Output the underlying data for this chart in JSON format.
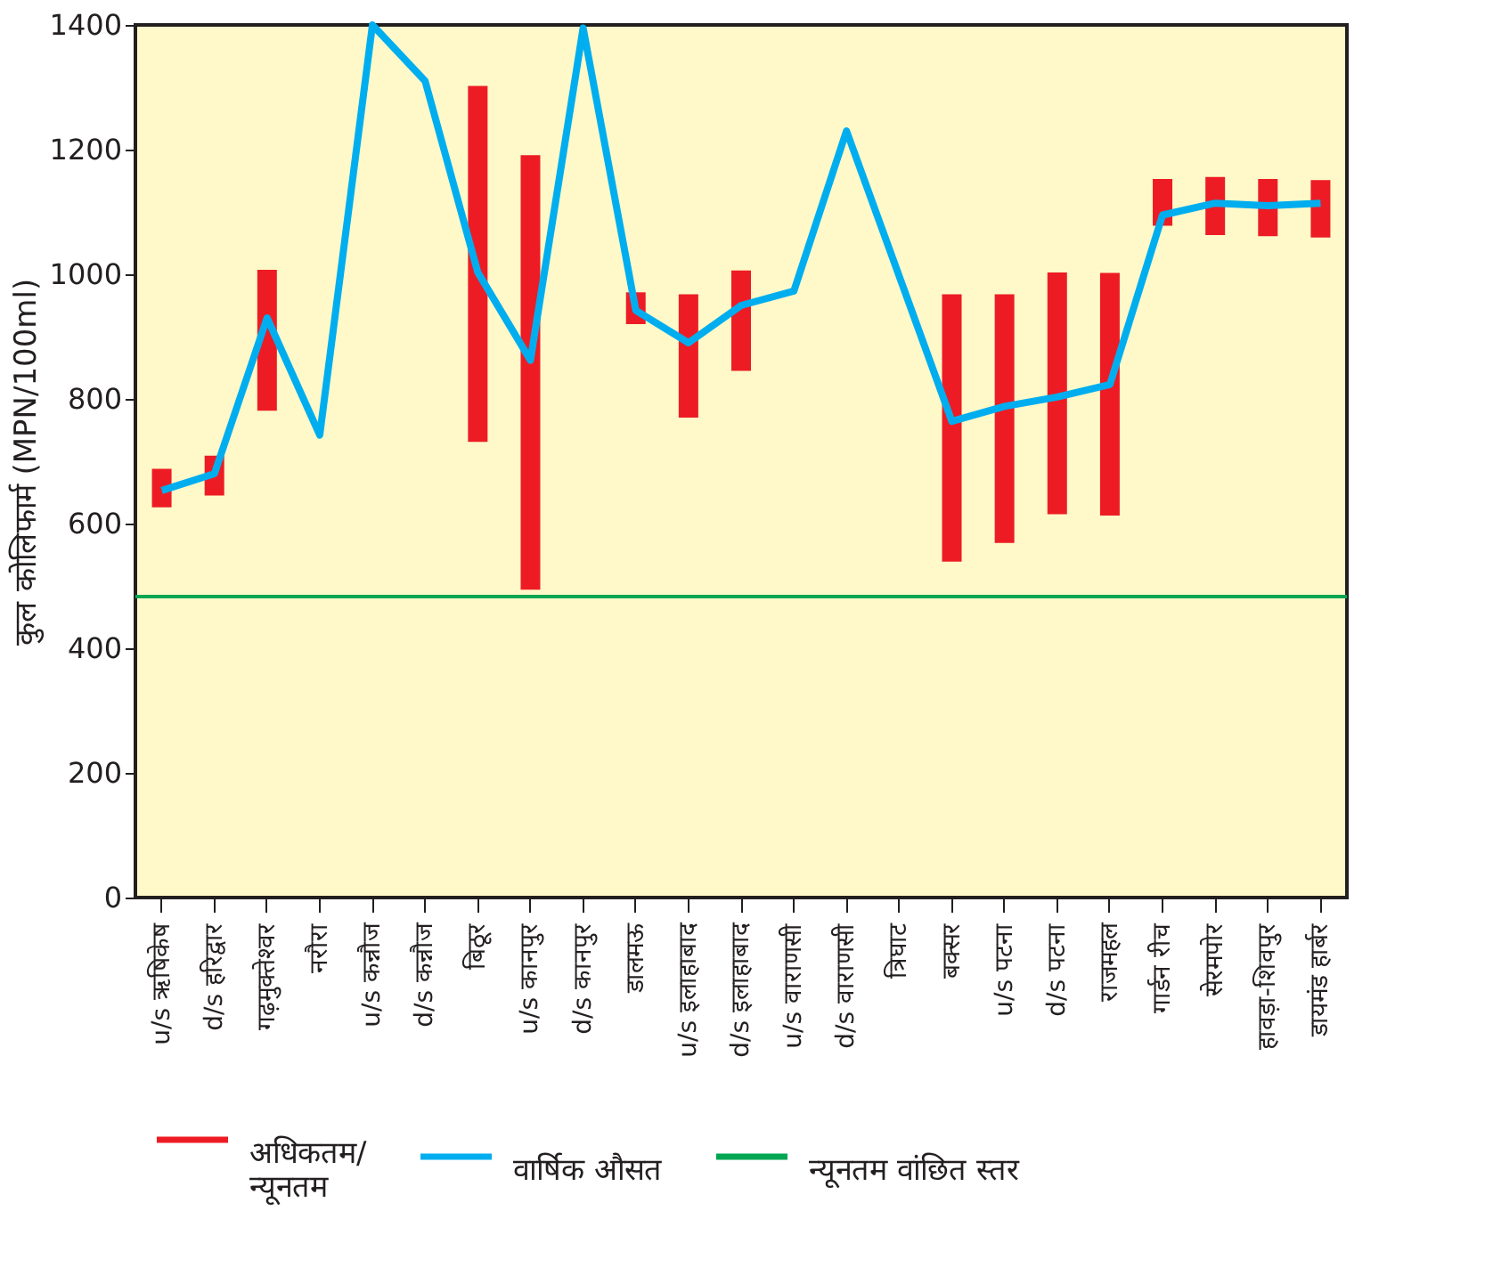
{
  "chart_data": {
    "type": "line",
    "ylabel": "कुल कोलिफार्म (MPN/100ml)",
    "categories": [
      "u/s ऋषिकेष",
      "d/s हरिद्वार",
      "गढ़मुक्तेश्वर",
      "नरौरा",
      "u/s कन्नौज",
      "d/s कन्नौज",
      "बिठूर",
      "u/s कानपुर",
      "d/s कानपुर",
      "डालमऊ",
      "u/s इलाहाबाद",
      "d/s इलाहाबाद",
      "u/s वाराणसी",
      "d/s वाराणसी",
      "त्रिघाट",
      "बक्सर",
      "u/s पटना",
      "d/s पटना",
      "राजमहल",
      "गार्डन रीच",
      "सेरमपोर",
      "हावड़ा-शिवपुर",
      "डायमंड हार्बर"
    ],
    "series": [
      {
        "name": "अधिकतम/न्यूनतम",
        "type": "bar",
        "color": "#ed1c24",
        "base": [
          626,
          645,
          781,
          null,
          null,
          null,
          731,
          494,
          null,
          920,
          770,
          845,
          null,
          null,
          null,
          539,
          569,
          615,
          613,
          1078,
          1063,
          1061,
          1059
        ],
        "values": [
          62,
          64,
          226,
          null,
          null,
          null,
          571,
          697,
          null,
          51,
          198,
          161,
          null,
          null,
          null,
          429,
          399,
          388,
          389,
          75,
          93,
          92,
          92
        ]
      },
      {
        "name": "वार्षिक औसत",
        "type": "line",
        "color": "#00aeef",
        "values": [
          653,
          680,
          930,
          742,
          1400,
          1310,
          1003,
          862,
          1395,
          942,
          890,
          950,
          973,
          1230,
          null,
          764,
          788,
          803,
          823,
          1095,
          1114,
          1110,
          1114
        ]
      }
    ],
    "ref_lines": [
      {
        "axis": "y",
        "value": 483,
        "label": "न्यूनतम वांछित स्तर",
        "color": "#00a651"
      }
    ],
    "ylim": [
      0,
      1400
    ],
    "yticks": [
      0,
      200,
      400,
      600,
      800,
      1000,
      1200,
      1400
    ],
    "grid": false,
    "legend": "bottom",
    "line_style": "solid",
    "marker": "none"
  }
}
